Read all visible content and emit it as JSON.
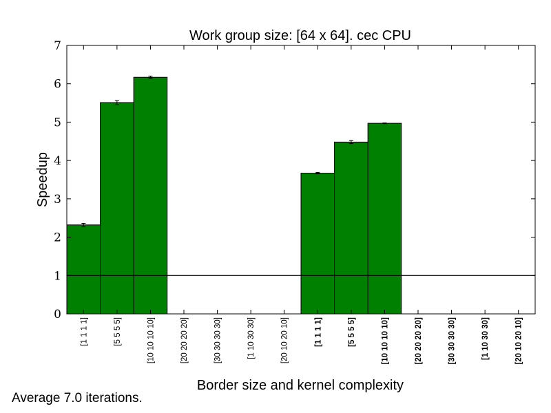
{
  "footnote": "Average 7.0 iterations.",
  "chart_data": {
    "type": "bar",
    "title": "Work group size: [64 x 64]. cec CPU",
    "xlabel": "Border size and kernel complexity",
    "ylabel": "Speedup",
    "ylim": [
      0,
      7
    ],
    "yticks": [
      "0",
      "1",
      "2",
      "3",
      "4",
      "5",
      "6",
      "7"
    ],
    "reference_line": 1,
    "bar_color": "#008000",
    "categories": [
      "[1 1 1 1]",
      "[5 5 5 5]",
      "[10 10 10 10]",
      "[20 20 20 20]",
      "[30 30 30 30]",
      "[1 10 30 30]",
      "[20 10 20 10]",
      "[1 1 1 1]",
      "[5 5 5 5]",
      "[10 10 10 10]",
      "[20 20 20 20]",
      "[30 30 30 30]",
      "[1 10 30 30]",
      "[20 10 20 10]"
    ],
    "bold_categories": [
      false,
      false,
      false,
      false,
      false,
      false,
      false,
      true,
      true,
      true,
      true,
      true,
      true,
      true
    ],
    "values": [
      2.32,
      5.51,
      6.17,
      null,
      null,
      null,
      null,
      3.67,
      4.48,
      4.97,
      null,
      null,
      null,
      null
    ],
    "errors": [
      0.04,
      0.05,
      0.03,
      null,
      null,
      null,
      null,
      0.02,
      0.04,
      0.01,
      null,
      null,
      null,
      null
    ],
    "grid": false,
    "legend": "none"
  }
}
